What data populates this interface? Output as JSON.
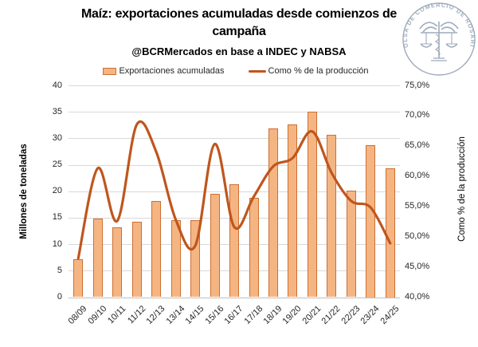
{
  "header": {
    "title": "Maíz: exportaciones acumuladas desde comienzos de campaña",
    "subtitle": "@BCRMercados en base a INDEC y NABSA"
  },
  "legend": {
    "bars_label": "Exportaciones acumuladas",
    "line_label": "Como % de la producción"
  },
  "axes": {
    "left_title": "Millones de toneladas",
    "right_title": "Como % de la producción",
    "left_ticks": [
      "40",
      "35",
      "30",
      "25",
      "20",
      "15",
      "10",
      "5",
      "0"
    ],
    "right_ticks": [
      "75,0%",
      "70,0%",
      "65,0%",
      "60,0%",
      "55,0%",
      "50,0%",
      "45,0%",
      "40,0%"
    ]
  },
  "logo": {
    "ring_text": "BOLSA DE COMERCIO DE ROSARIO"
  },
  "colors": {
    "bar_fill": "#F4B583",
    "bar_border": "#CE6F31",
    "line": "#BF561D",
    "grid": "#D9D9D9",
    "axis_line": "#BFBFBF",
    "logo": "#9FABBC"
  },
  "chart_data": {
    "type": "bar+line",
    "title": "Maíz: exportaciones acumuladas desde comienzos de campaña",
    "subtitle": "@BCRMercados en base a INDEC y NABSA",
    "categories": [
      "08/09",
      "09/10",
      "10/11",
      "11/12",
      "12/13",
      "13/14",
      "14/15",
      "15/16",
      "16/17",
      "17/18",
      "18/19",
      "19/20",
      "20/21",
      "21/22",
      "22/23",
      "23/24",
      "24/25"
    ],
    "series": [
      {
        "name": "Exportaciones acumuladas",
        "type": "bar",
        "axis": "left",
        "unit": "millones de toneladas",
        "values": [
          7.1,
          14.8,
          13.2,
          14.3,
          18.1,
          14.5,
          14.6,
          19.5,
          21.3,
          18.7,
          31.8,
          32.6,
          35.0,
          30.6,
          20.1,
          28.7,
          24.4
        ]
      },
      {
        "name": "Como % de la producción",
        "type": "line",
        "axis": "right",
        "unit": "%",
        "values": [
          46.4,
          61.3,
          52.6,
          68.5,
          64.0,
          52.8,
          48.5,
          65.3,
          51.6,
          56.6,
          61.6,
          63.0,
          67.4,
          60.5,
          55.9,
          54.8,
          48.9
        ]
      }
    ],
    "left_axis": {
      "label": "Millones de toneladas",
      "min": 0,
      "max": 40,
      "step": 5
    },
    "right_axis": {
      "label": "Como % de la producción",
      "min": 40,
      "max": 75,
      "step": 5,
      "tick_format": "comma-decimal-percent"
    },
    "grid": "horizontal",
    "legend_position": "top",
    "smooth_line": true
  }
}
